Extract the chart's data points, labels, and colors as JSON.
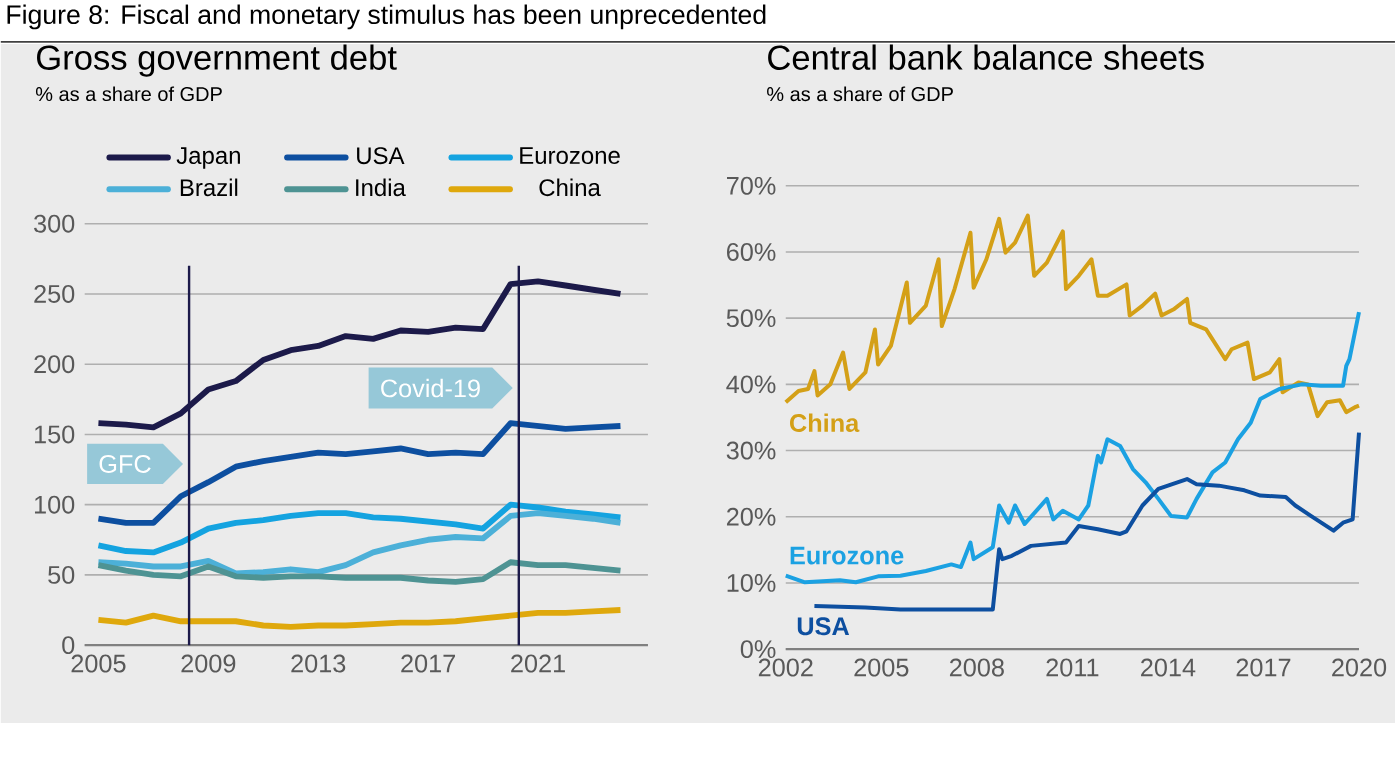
{
  "chart_data": [
    {
      "type": "line",
      "title": "Gross government debt",
      "subtitle": "% as a share of GDP",
      "annotations": [
        "Figure 8: Fiscal and monetary stimulus has been unprecedented"
      ],
      "x": [
        2005,
        2006,
        2007,
        2008,
        2009,
        2010,
        2011,
        2012,
        2013,
        2014,
        2015,
        2016,
        2017,
        2018,
        2019,
        2020,
        2021,
        2022,
        2023,
        2024
      ],
      "series": [
        {
          "name": "Japan",
          "color": "#1c1a4a",
          "values": [
            158,
            157,
            155,
            165,
            182,
            188,
            203,
            210,
            213,
            220,
            218,
            224,
            223,
            226,
            225,
            257,
            259,
            256,
            253,
            250
          ]
        },
        {
          "name": "USA",
          "color": "#0d4fa0",
          "values": [
            90,
            87,
            87,
            106,
            116,
            127,
            131,
            134,
            137,
            136,
            138,
            140,
            136,
            137,
            136,
            158,
            156,
            154,
            155,
            156
          ]
        },
        {
          "name": "Eurozone",
          "color": "#14a3e0",
          "values": [
            71,
            67,
            66,
            73,
            83,
            87,
            89,
            92,
            94,
            94,
            91,
            90,
            88,
            86,
            83,
            100,
            98,
            95,
            93,
            91
          ]
        },
        {
          "name": "Brazil",
          "color": "#4cb0d8",
          "values": [
            59,
            58,
            56,
            56,
            60,
            51,
            52,
            54,
            52,
            57,
            66,
            71,
            75,
            77,
            76,
            92,
            94,
            92,
            90,
            87
          ]
        },
        {
          "name": "India",
          "color": "#4e9393",
          "values": [
            57,
            53,
            50,
            49,
            56,
            49,
            48,
            49,
            49,
            48,
            48,
            48,
            46,
            45,
            47,
            59,
            57,
            57,
            55,
            53
          ]
        },
        {
          "name": "China",
          "color": "#dfa80c",
          "values": [
            18,
            16,
            21,
            17,
            17,
            17,
            14,
            13,
            14,
            14,
            15,
            16,
            16,
            17,
            19,
            21,
            23,
            23,
            24,
            25
          ]
        }
      ],
      "xlim": [
        2004.5,
        2025
      ],
      "ylim": [
        0,
        300
      ],
      "xticks": [
        2005,
        2009,
        2013,
        2017,
        2021
      ],
      "yticks": [
        0,
        50,
        100,
        150,
        200,
        250,
        300
      ],
      "grid": "y",
      "legend": "top",
      "ref_lines": [
        {
          "axis": "x",
          "value": 2008.3,
          "label": "GFC",
          "color": "#1c1a4a"
        },
        {
          "axis": "x",
          "value": 2020.3,
          "label": "Covid-19",
          "color": "#1c1a4a"
        }
      ]
    },
    {
      "type": "line",
      "title": "Central bank balance sheets",
      "subtitle": "% as a share of GDP",
      "series": [
        {
          "name": "China",
          "color": "#d4a017",
          "x": [
            2002.0,
            2002.4,
            2002.7,
            2002.9,
            2003.0,
            2003.4,
            2003.8,
            2004.0,
            2004.5,
            2004.8,
            2004.9,
            2005.3,
            2005.8,
            2005.9,
            2006.4,
            2006.8,
            2006.9,
            2007.3,
            2007.8,
            2007.9,
            2008.3,
            2008.7,
            2008.9,
            2009.2,
            2009.6,
            2009.8,
            2010.2,
            2010.7,
            2010.8,
            2011.2,
            2011.6,
            2011.8,
            2012.1,
            2012.7,
            2012.8,
            2013.2,
            2013.6,
            2013.8,
            2014.2,
            2014.6,
            2014.7,
            2015.2,
            2015.8,
            2016.0,
            2016.5,
            2016.7,
            2017.2,
            2017.5,
            2017.6,
            2018.1,
            2018.4,
            2018.7,
            2019.0,
            2019.4,
            2019.6,
            2019.9,
            2020.0
          ],
          "values": [
            37.3,
            39,
            39.3,
            42,
            38.3,
            40,
            44.8,
            39.3,
            41.8,
            48.3,
            43,
            45.8,
            55.4,
            49.3,
            51.9,
            58.9,
            48.8,
            54.4,
            62.9,
            54.6,
            58.9,
            65,
            59.9,
            61.4,
            65.5,
            56.4,
            58.4,
            63.1,
            54.4,
            56.4,
            58.9,
            53.4,
            53.4,
            55.1,
            50.4,
            51.9,
            53.7,
            50.4,
            51.4,
            52.9,
            49.3,
            48.3,
            43.8,
            45.3,
            46.3,
            40.8,
            41.8,
            43.8,
            38.8,
            40.3,
            40,
            35.2,
            37.3,
            37.6,
            35.8,
            36.6,
            36.8
          ]
        },
        {
          "name": "Eurozone",
          "color": "#1ba1e2",
          "x": [
            2002.0,
            2002.6,
            2003.7,
            2004.2,
            2004.9,
            2005.6,
            2006.4,
            2007.2,
            2007.5,
            2007.8,
            2007.9,
            2008.5,
            2008.7,
            2009.0,
            2009.2,
            2009.5,
            2010.2,
            2010.4,
            2010.7,
            2011.2,
            2011.5,
            2011.8,
            2011.9,
            2012.1,
            2012.5,
            2012.9,
            2013.3,
            2013.7,
            2014.1,
            2014.6,
            2014.9,
            2015.4,
            2015.8,
            2016.2,
            2016.6,
            2016.9,
            2017.5,
            2018.2,
            2018.8,
            2019.5,
            2019.6,
            2019.7,
            2020.0
          ],
          "values": [
            11.1,
            10.1,
            10.4,
            10.1,
            11,
            11.1,
            11.8,
            12.8,
            12.4,
            16.1,
            13.6,
            15.4,
            21.7,
            19.1,
            21.7,
            18.9,
            22.7,
            19.6,
            20.9,
            19.6,
            21.7,
            29.2,
            28.2,
            31.7,
            30.7,
            27.2,
            25.2,
            22.7,
            20.1,
            19.9,
            22.7,
            26.7,
            28.2,
            31.7,
            34.2,
            37.8,
            39.3,
            40,
            39.8,
            39.8,
            42.8,
            43.8,
            50.9
          ]
        },
        {
          "name": "USA",
          "color": "#0d4fa0",
          "x": [
            2002.9,
            2004.5,
            2005.6,
            2008.5,
            2008.7,
            2008.8,
            2009.1,
            2009.7,
            2010.8,
            2011.2,
            2011.8,
            2012.5,
            2012.7,
            2013.2,
            2013.7,
            2014.6,
            2014.9,
            2015.6,
            2016.4,
            2016.9,
            2017.7,
            2018.0,
            2018.5,
            2019.2,
            2019.5,
            2019.8,
            2019.9,
            2020.0
          ],
          "values": [
            6.5,
            6.3,
            6,
            6,
            15.1,
            13.6,
            14.1,
            15.6,
            16.1,
            18.6,
            18.1,
            17.4,
            17.8,
            21.7,
            24.2,
            25.7,
            24.9,
            24.7,
            24,
            23.2,
            23,
            21.7,
            20.1,
            17.9,
            19.1,
            19.6,
            26.2,
            32.7
          ]
        }
      ],
      "xlim": [
        2002,
        2020
      ],
      "ylim": [
        0,
        70
      ],
      "xticks": [
        2002,
        2005,
        2008,
        2011,
        2014,
        2017,
        2020
      ],
      "yticks": [
        {
          "value": 0,
          "label": "0%"
        },
        {
          "value": 10,
          "label": "10%"
        },
        {
          "value": 20,
          "label": "20%"
        },
        {
          "value": 30,
          "label": "30%"
        },
        {
          "value": 40,
          "label": "40%"
        },
        {
          "value": 50,
          "label": "50%"
        },
        {
          "value": 60,
          "label": "60%"
        },
        {
          "value": 70,
          "label": "70%"
        }
      ],
      "grid": "y"
    }
  ]
}
